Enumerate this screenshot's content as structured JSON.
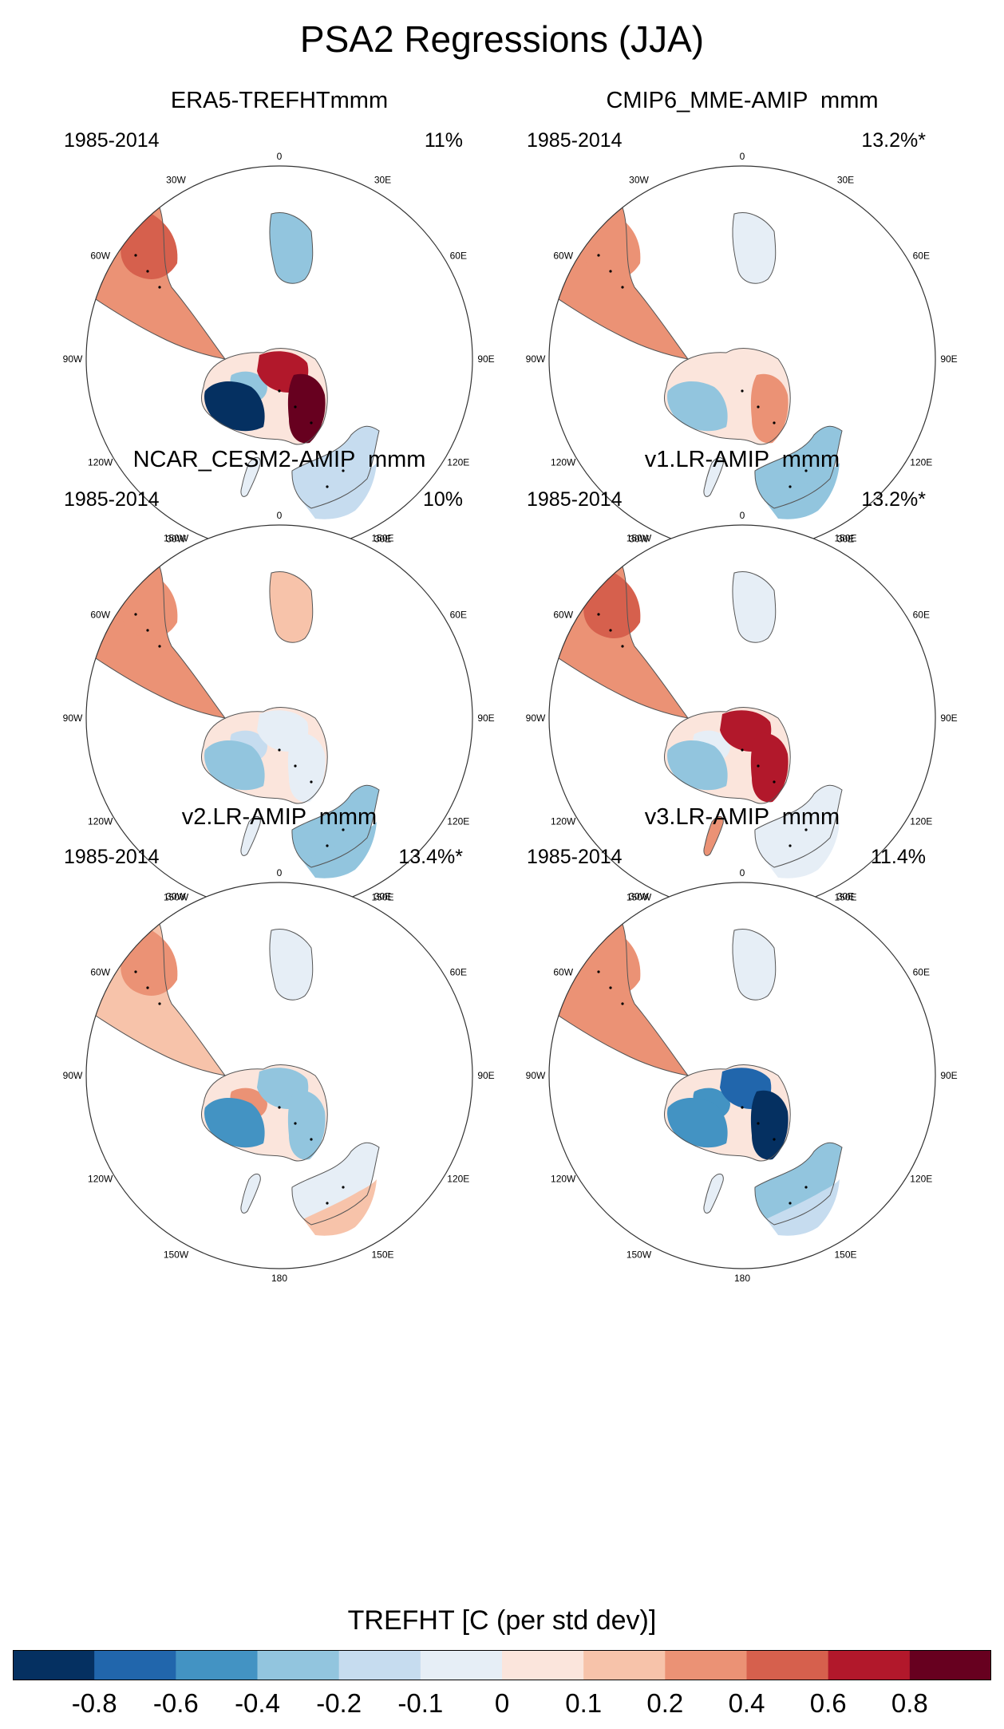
{
  "title": "PSA2 Regressions (JJA)",
  "longitude_labels": [
    "0",
    "30E",
    "60E",
    "90E",
    "120E",
    "150E",
    "180",
    "150W",
    "120W",
    "90W",
    "60W",
    "30W"
  ],
  "panels": [
    {
      "title": "ERA5-TREFHTmmm",
      "period": "1985-2014",
      "percent": "11%",
      "pattern": {
        "tip": 0.5,
        "s_am": 0.3,
        "wa_coast": -0.9,
        "wa_in": -0.4,
        "ea_w": 0.6,
        "ea_e": 0.9,
        "aus_w": -0.2,
        "aus_e": -0.2,
        "nz": -0.1,
        "africa": -0.3
      }
    },
    {
      "title": "CMIP6_MME-AMIP  mmm",
      "period": "1985-2014",
      "percent": "13.2%*",
      "pattern": {
        "tip": 0.3,
        "s_am": 0.2,
        "wa_coast": -0.3,
        "wa_in": 0.05,
        "ea_w": 0.05,
        "ea_e": 0.3,
        "aus_w": -0.3,
        "aus_e": -0.3,
        "nz": -0.05,
        "africa": -0.1
      }
    },
    {
      "title": "NCAR_CESM2-AMIP  mmm",
      "period": "1985-2014",
      "percent": "10%",
      "pattern": {
        "tip": 0.3,
        "s_am": 0.3,
        "wa_coast": -0.4,
        "wa_in": -0.2,
        "ea_w": -0.1,
        "ea_e": -0.1,
        "aus_w": -0.3,
        "aus_e": -0.3,
        "nz": -0.1,
        "africa": 0.1
      }
    },
    {
      "title": "v1.LR-AMIP  mmm",
      "period": "1985-2014",
      "percent": "13.2%*",
      "pattern": {
        "tip": 0.4,
        "s_am": 0.2,
        "wa_coast": -0.4,
        "wa_in": -0.1,
        "ea_w": 0.6,
        "ea_e": 0.7,
        "aus_w": -0.1,
        "aus_e": -0.1,
        "nz": 0.2,
        "africa": -0.1
      }
    },
    {
      "title": "v2.LR-AMIP  mmm",
      "period": "1985-2014",
      "percent": "13.4%*",
      "pattern": {
        "tip": 0.3,
        "s_am": 0.1,
        "wa_coast": -0.5,
        "wa_in": 0.3,
        "ea_w": -0.3,
        "ea_e": -0.4,
        "aus_w": -0.1,
        "aus_e": 0.1,
        "nz": -0.1,
        "africa": -0.1
      }
    },
    {
      "title": "v3.LR-AMIP  mmm",
      "period": "1985-2014",
      "percent": "11.4%",
      "pattern": {
        "tip": 0.3,
        "s_am": 0.2,
        "wa_coast": -0.5,
        "wa_in": -0.5,
        "ea_w": -0.7,
        "ea_e": -0.9,
        "aus_w": -0.3,
        "aus_e": -0.2,
        "nz": -0.1,
        "africa": -0.1
      }
    }
  ],
  "colorbar": {
    "title": "TREFHT [C (per std dev)]",
    "levels": [
      "-0.8",
      "-0.6",
      "-0.4",
      "-0.2",
      "-0.1",
      "0",
      "0.1",
      "0.2",
      "0.4",
      "0.6",
      "0.8"
    ],
    "colors": [
      "#053061",
      "#2166ac",
      "#4393c3",
      "#92c5de",
      "#c6dcef",
      "#e6eef6",
      "#fbe5dc",
      "#f7c3aa",
      "#eb9275",
      "#d6604d",
      "#b2182b",
      "#67001f"
    ]
  }
}
